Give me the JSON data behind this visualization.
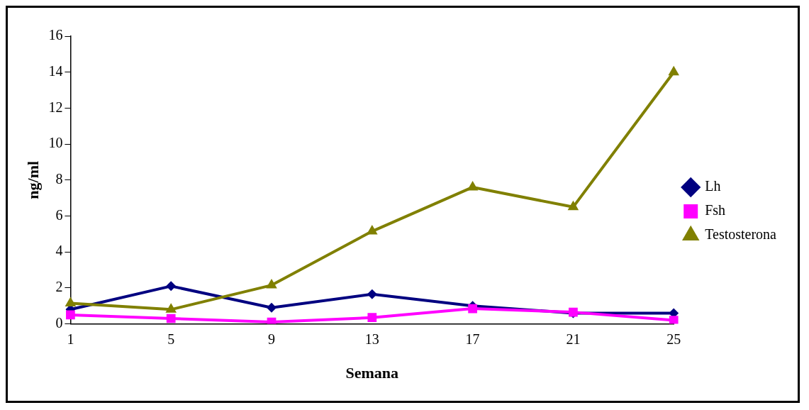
{
  "chart_data": {
    "type": "line",
    "xlabel": "Semana",
    "ylabel": "ng/ml",
    "categories": [
      "1",
      "5",
      "9",
      "13",
      "17",
      "21",
      "25"
    ],
    "series": [
      {
        "name": "Lh",
        "color": "#000080",
        "marker": "diamond",
        "values": [
          0.8,
          2.1,
          0.9,
          1.65,
          1.0,
          0.6,
          0.6
        ]
      },
      {
        "name": "Fsh",
        "color": "#ff00ff",
        "marker": "square",
        "values": [
          0.5,
          0.3,
          0.1,
          0.35,
          0.85,
          0.65,
          0.2
        ]
      },
      {
        "name": "Testosterona",
        "color": "#808000",
        "marker": "triangle",
        "values": [
          1.15,
          0.8,
          2.15,
          5.15,
          7.6,
          6.5,
          14.0
        ]
      }
    ],
    "ylim": [
      0,
      16
    ],
    "yticks": [
      0,
      2,
      4,
      6,
      8,
      10,
      12,
      14,
      16
    ],
    "grid": false,
    "legend": "right"
  }
}
